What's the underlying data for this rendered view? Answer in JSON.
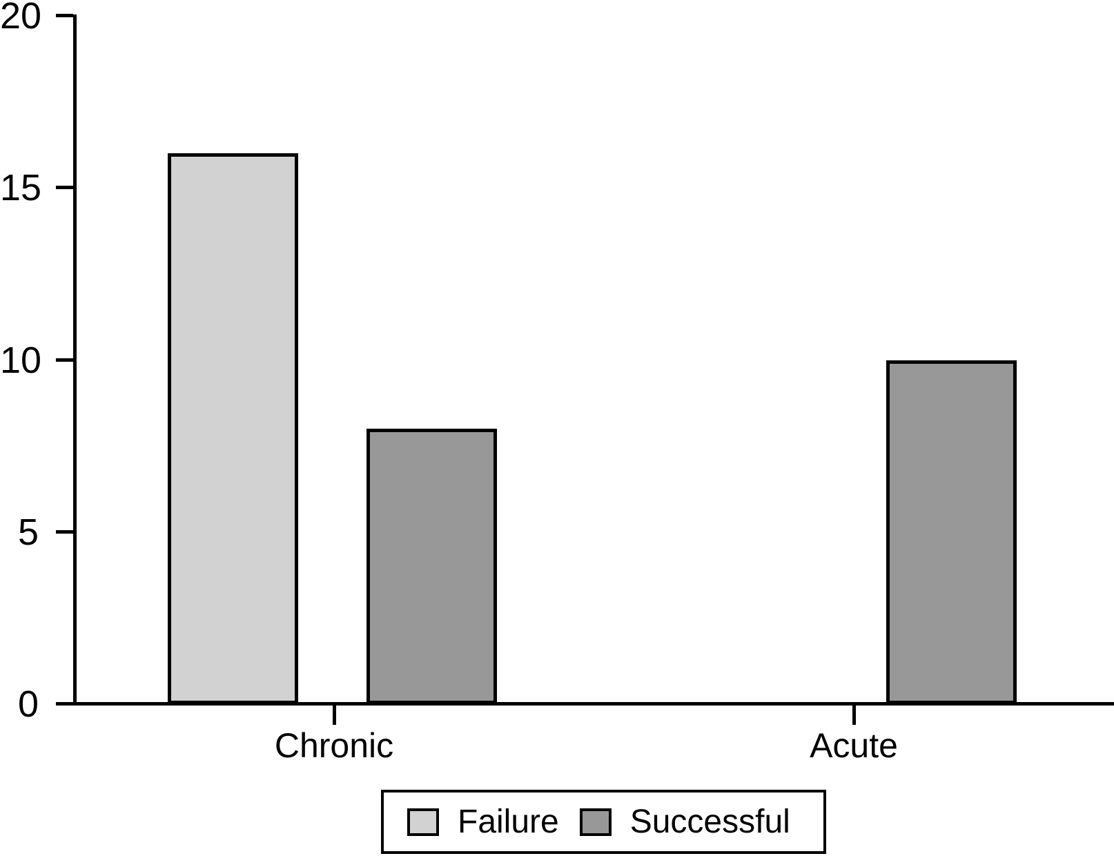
{
  "chart_data": {
    "type": "bar",
    "categories": [
      "Chronic",
      "Acute"
    ],
    "series": [
      {
        "name": "Failure",
        "values": [
          16,
          0
        ],
        "color": "#d2d2d2"
      },
      {
        "name": "Successful",
        "values": [
          8,
          10
        ],
        "color": "#989898"
      }
    ],
    "title": "",
    "xlabel": "",
    "ylabel": "",
    "ylim": [
      0,
      20
    ],
    "yticks": [
      0,
      5,
      10,
      15,
      20
    ],
    "grid": false,
    "legend_position": "bottom",
    "bar_border_color": "#000000",
    "axis_color": "#000000",
    "background_color": "#ffffff"
  },
  "legend": {
    "items": [
      {
        "label": "Failure",
        "color": "#d2d2d2"
      },
      {
        "label": "Successful",
        "color": "#989898"
      }
    ]
  }
}
